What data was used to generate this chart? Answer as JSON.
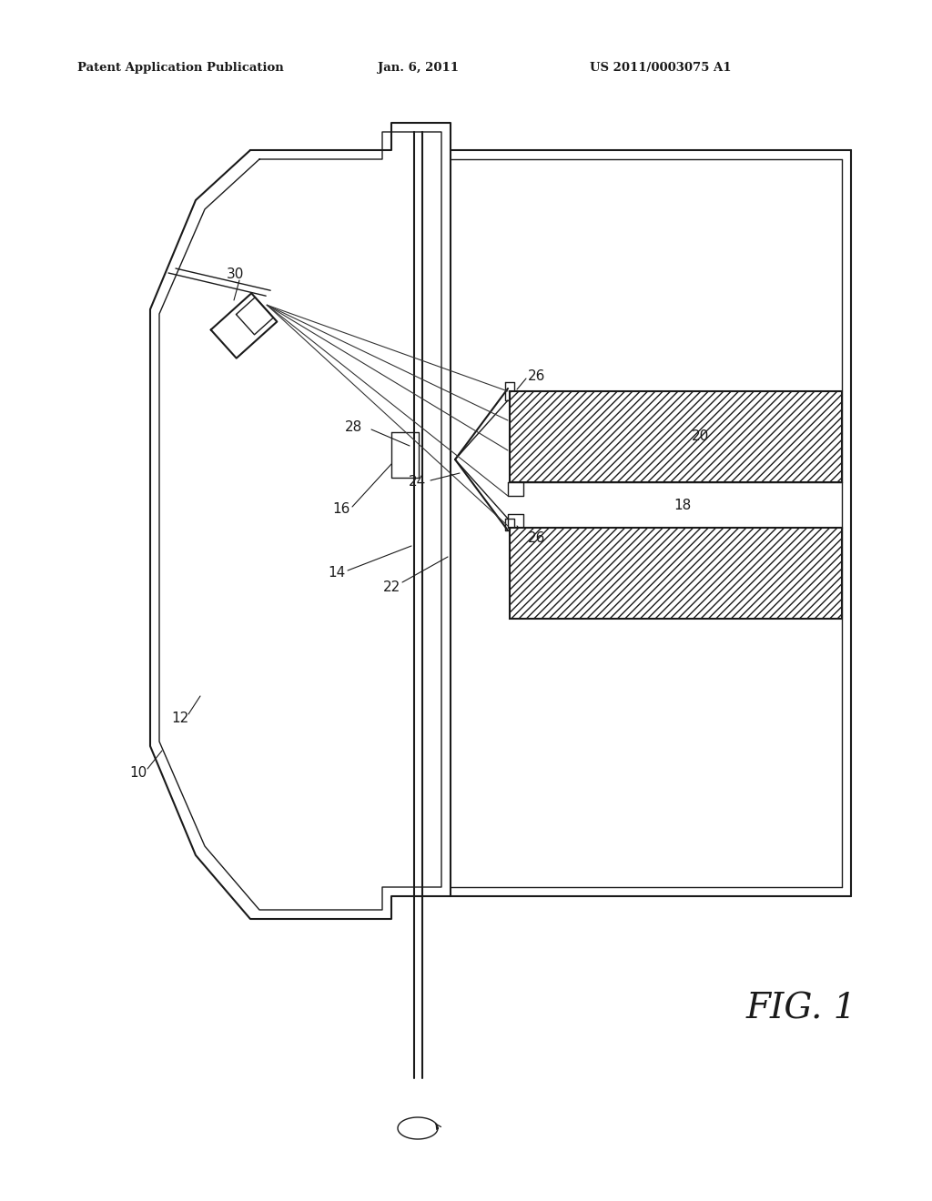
{
  "bg_color": "#ffffff",
  "lc": "#1a1a1a",
  "header_left": "Patent Application Publication",
  "header_center": "Jan. 6, 2011",
  "header_right": "US 2011/0003075 A1",
  "fig_label": "FIG. 1",
  "lw": 1.5,
  "lw2": 1.0,
  "fs": 11
}
